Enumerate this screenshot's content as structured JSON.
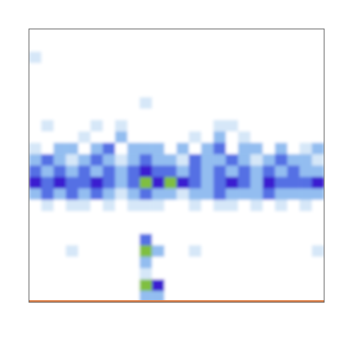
{
  "chart_data": {
    "type": "heatmap",
    "tick_labels": false,
    "xlim": [
      0,
      24
    ],
    "ylim": [
      0,
      24
    ],
    "zlim": [
      0,
      5
    ],
    "x": [
      0.5,
      1.5,
      2.5,
      3.5,
      4.5,
      5.5,
      6.5,
      7.5,
      8.5,
      9.5,
      10.5,
      11.5,
      12.5,
      13.5,
      14.5,
      15.5,
      16.5,
      17.5,
      18.5,
      19.5,
      20.5,
      21.5,
      22.5,
      23.5
    ],
    "y": [
      23.5,
      22.5,
      21.5,
      20.5,
      19.5,
      18.5,
      17.5,
      16.5,
      15.5,
      14.5,
      13.5,
      12.5,
      11.5,
      10.5,
      9.5,
      8.5,
      7.5,
      6.5,
      5.5,
      4.5,
      3.5,
      2.5,
      1.5,
      0.5
    ],
    "values": [
      [
        0,
        0,
        0,
        0,
        0,
        0,
        0,
        0,
        0,
        0,
        0,
        0,
        0,
        0,
        0,
        0,
        0,
        0,
        0,
        0,
        0,
        0,
        0,
        0
      ],
      [
        0,
        0,
        0,
        0,
        0,
        0,
        0,
        0,
        0,
        0,
        0,
        0,
        0,
        0,
        0,
        0,
        0,
        0,
        0,
        0,
        0,
        0,
        0,
        0
      ],
      [
        1,
        0,
        0,
        0,
        0,
        0,
        0,
        0,
        0,
        0,
        0,
        0,
        0,
        0,
        0,
        0,
        0,
        0,
        0,
        0,
        0,
        0,
        0,
        0
      ],
      [
        0,
        0,
        0,
        0,
        0,
        0,
        0,
        0,
        0,
        0,
        0,
        0,
        0,
        0,
        0,
        0,
        0,
        0,
        0,
        0,
        0,
        0,
        0,
        0
      ],
      [
        0,
        0,
        0,
        0,
        0,
        0,
        0,
        0,
        0,
        0,
        0,
        0,
        0,
        0,
        0,
        0,
        0,
        0,
        0,
        0,
        0,
        0,
        0,
        0
      ],
      [
        0,
        0,
        0,
        0,
        0,
        0,
        0,
        0,
        0,
        0,
        0,
        0,
        0,
        0,
        0,
        0,
        0,
        0,
        0,
        0,
        0,
        0,
        0,
        0
      ],
      [
        0,
        0,
        0,
        0,
        0,
        0,
        0,
        0,
        0,
        1,
        0,
        0,
        0,
        0,
        0,
        0,
        0,
        0,
        0,
        0,
        0,
        0,
        0,
        0
      ],
      [
        0,
        0,
        0,
        0,
        0,
        0,
        0,
        0,
        0,
        0,
        0,
        0,
        0,
        0,
        0,
        0,
        0,
        0,
        0,
        0,
        0,
        0,
        0,
        0
      ],
      [
        0,
        1,
        0,
        0,
        0,
        1,
        0,
        1,
        0,
        0,
        0,
        0,
        0,
        0,
        0,
        1,
        1,
        0,
        0,
        0,
        0,
        0,
        0,
        0
      ],
      [
        0,
        0,
        0,
        0,
        1,
        0,
        0,
        2,
        0,
        0,
        0,
        0,
        0,
        1,
        0,
        2,
        0,
        1,
        0,
        0,
        0,
        0,
        0,
        0
      ],
      [
        1,
        0,
        2,
        2,
        0,
        2,
        3,
        0,
        2,
        2,
        2,
        0,
        2,
        0,
        2,
        3,
        0,
        2,
        2,
        0,
        2,
        0,
        1,
        2
      ],
      [
        2,
        3,
        2,
        1,
        2,
        3,
        2,
        1,
        2,
        3,
        2,
        2,
        1,
        3,
        2,
        2,
        3,
        2,
        1,
        2,
        3,
        2,
        2,
        1
      ],
      [
        3,
        2,
        3,
        2,
        3,
        2,
        3,
        2,
        3,
        4,
        3,
        3,
        2,
        3,
        2,
        3,
        2,
        3,
        2,
        3,
        2,
        3,
        2,
        2
      ],
      [
        4,
        3,
        4,
        3,
        3,
        4,
        3,
        2,
        3,
        5,
        4,
        5,
        4,
        3,
        2,
        3,
        4,
        3,
        2,
        4,
        3,
        3,
        3,
        4
      ],
      [
        2,
        3,
        2,
        3,
        2,
        3,
        2,
        1,
        2,
        3,
        2,
        2,
        1,
        2,
        2,
        3,
        2,
        2,
        2,
        3,
        2,
        2,
        2,
        2
      ],
      [
        0,
        1,
        0,
        1,
        1,
        0,
        1,
        0,
        1,
        1,
        1,
        0,
        0,
        1,
        0,
        1,
        1,
        0,
        1,
        0,
        1,
        0,
        1,
        0
      ],
      [
        0,
        0,
        0,
        0,
        0,
        0,
        0,
        0,
        0,
        0,
        0,
        0,
        0,
        0,
        0,
        0,
        0,
        0,
        0,
        0,
        0,
        0,
        0,
        0
      ],
      [
        0,
        0,
        0,
        0,
        0,
        0,
        0,
        0,
        0,
        0,
        0,
        0,
        0,
        0,
        0,
        0,
        0,
        0,
        0,
        0,
        0,
        0,
        0,
        0
      ],
      [
        0,
        0,
        0,
        0,
        0,
        0,
        0,
        0,
        0,
        3,
        0,
        0,
        0,
        0,
        0,
        0,
        0,
        0,
        0,
        0,
        0,
        0,
        0,
        0
      ],
      [
        0,
        0,
        0,
        1,
        0,
        0,
        0,
        0,
        0,
        5,
        2,
        0,
        0,
        1,
        0,
        0,
        0,
        0,
        0,
        0,
        0,
        0,
        0,
        1
      ],
      [
        0,
        0,
        0,
        0,
        0,
        0,
        0,
        0,
        0,
        2,
        0,
        0,
        0,
        0,
        0,
        0,
        0,
        0,
        0,
        0,
        0,
        0,
        0,
        0
      ],
      [
        0,
        0,
        0,
        0,
        0,
        0,
        0,
        0,
        0,
        1,
        0,
        0,
        0,
        0,
        0,
        0,
        0,
        0,
        0,
        0,
        0,
        0,
        0,
        0
      ],
      [
        0,
        0,
        0,
        0,
        0,
        0,
        0,
        0,
        0,
        5,
        4,
        0,
        0,
        0,
        0,
        0,
        0,
        0,
        0,
        0,
        0,
        0,
        0,
        0
      ],
      [
        0,
        0,
        0,
        0,
        0,
        0,
        0,
        0,
        0,
        2,
        2,
        0,
        0,
        0,
        0,
        0,
        0,
        0,
        0,
        0,
        0,
        0,
        0,
        0
      ]
    ],
    "series": [
      {
        "type": "line",
        "color": "#e0824a",
        "x": [
          0,
          24
        ],
        "values": [
          0.1,
          0.1
        ]
      }
    ]
  }
}
